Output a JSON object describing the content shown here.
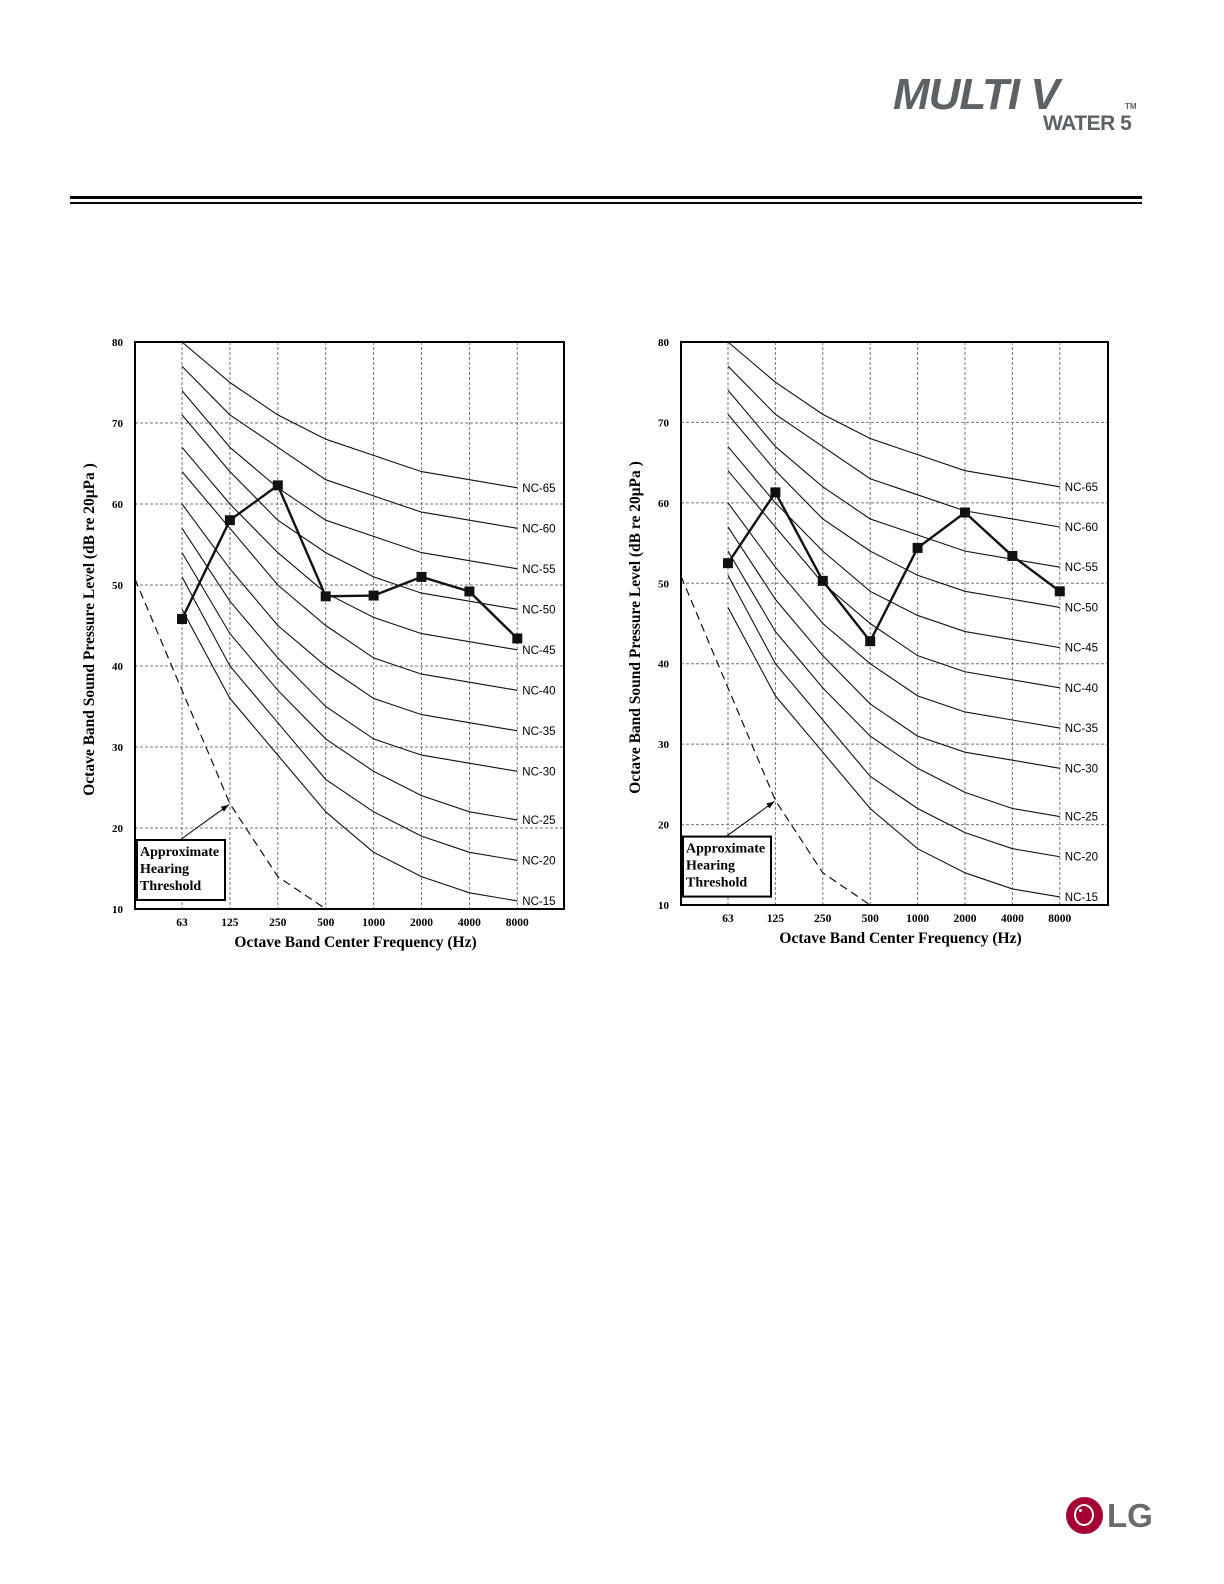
{
  "header": {
    "logo_text": "MULTI V",
    "logo_tm": "TM",
    "logo_subtitle": "WATER 5"
  },
  "footer": {
    "brand": "LG"
  },
  "chart_data": [
    {
      "type": "line",
      "xlabel": "Octave Band Center Frequency (Hz)",
      "ylabel": "Octave Band Sound Pressure Level (dB re 20μPa )",
      "categories": [
        "63",
        "125",
        "250",
        "500",
        "1000",
        "2000",
        "4000",
        "8000"
      ],
      "ylim": [
        10,
        80
      ],
      "yticks": [
        10,
        20,
        30,
        40,
        50,
        60,
        70,
        80
      ],
      "grid": true,
      "series": [
        {
          "values": [
            45.8,
            58,
            62.3,
            48.6,
            48.7,
            51,
            49.2,
            43.4
          ]
        }
      ],
      "nc_curves": [
        {
          "name": "NC-65",
          "values": [
            80,
            75,
            71,
            68,
            66,
            64,
            63,
            62
          ]
        },
        {
          "name": "NC-60",
          "values": [
            77,
            71,
            67,
            63,
            61,
            59,
            58,
            57
          ]
        },
        {
          "name": "NC-55",
          "values": [
            74,
            67,
            62,
            58,
            56,
            54,
            53,
            52
          ]
        },
        {
          "name": "NC-50",
          "values": [
            71,
            64,
            58,
            54,
            51,
            49,
            48,
            47
          ]
        },
        {
          "name": "NC-45",
          "values": [
            67,
            60,
            54,
            49,
            46,
            44,
            43,
            42
          ]
        },
        {
          "name": "NC-40",
          "values": [
            64,
            57,
            50,
            45,
            41,
            39,
            38,
            37
          ]
        },
        {
          "name": "NC-35",
          "values": [
            60,
            52,
            45,
            40,
            36,
            34,
            33,
            32
          ]
        },
        {
          "name": "NC-30",
          "values": [
            57,
            48,
            41,
            35,
            31,
            29,
            28,
            27
          ]
        },
        {
          "name": "NC-25",
          "values": [
            54,
            44,
            37,
            31,
            27,
            24,
            22,
            21
          ]
        },
        {
          "name": "NC-20",
          "values": [
            51,
            40,
            33,
            26,
            22,
            19,
            17,
            16
          ]
        },
        {
          "name": "NC-15",
          "values": [
            47,
            36,
            29,
            22,
            17,
            14,
            12,
            11
          ]
        }
      ],
      "hearing_threshold": {
        "label": [
          "Approximate",
          "Hearing",
          "Threshold"
        ],
        "values": [
          37,
          23,
          14,
          10
        ]
      }
    },
    {
      "type": "line",
      "xlabel": "Octave Band Center Frequency (Hz)",
      "ylabel": "Octave Band Sound Pressure Level (dB re 20μPa )",
      "categories": [
        "63",
        "125",
        "250",
        "500",
        "1000",
        "2000",
        "4000",
        "8000"
      ],
      "ylim": [
        10,
        80
      ],
      "yticks": [
        10,
        20,
        30,
        40,
        50,
        60,
        70,
        80
      ],
      "grid": true,
      "series": [
        {
          "values": [
            52.5,
            61.3,
            50.3,
            42.8,
            54.4,
            58.8,
            53.4,
            49
          ]
        }
      ],
      "nc_curves": [
        {
          "name": "NC-65",
          "values": [
            80,
            75,
            71,
            68,
            66,
            64,
            63,
            62
          ]
        },
        {
          "name": "NC-60",
          "values": [
            77,
            71,
            67,
            63,
            61,
            59,
            58,
            57
          ]
        },
        {
          "name": "NC-55",
          "values": [
            74,
            67,
            62,
            58,
            56,
            54,
            53,
            52
          ]
        },
        {
          "name": "NC-50",
          "values": [
            71,
            64,
            58,
            54,
            51,
            49,
            48,
            47
          ]
        },
        {
          "name": "NC-45",
          "values": [
            67,
            60,
            54,
            49,
            46,
            44,
            43,
            42
          ]
        },
        {
          "name": "NC-40",
          "values": [
            64,
            57,
            50,
            45,
            41,
            39,
            38,
            37
          ]
        },
        {
          "name": "NC-35",
          "values": [
            60,
            52,
            45,
            40,
            36,
            34,
            33,
            32
          ]
        },
        {
          "name": "NC-30",
          "values": [
            57,
            48,
            41,
            35,
            31,
            29,
            28,
            27
          ]
        },
        {
          "name": "NC-25",
          "values": [
            54,
            44,
            37,
            31,
            27,
            24,
            22,
            21
          ]
        },
        {
          "name": "NC-20",
          "values": [
            51,
            40,
            33,
            26,
            22,
            19,
            17,
            16
          ]
        },
        {
          "name": "NC-15",
          "values": [
            47,
            36,
            29,
            22,
            17,
            14,
            12,
            11
          ]
        }
      ],
      "hearing_threshold": {
        "label": [
          "Approximate",
          "Hearing",
          "Threshold"
        ],
        "values": [
          37,
          23,
          14,
          10
        ]
      }
    }
  ]
}
